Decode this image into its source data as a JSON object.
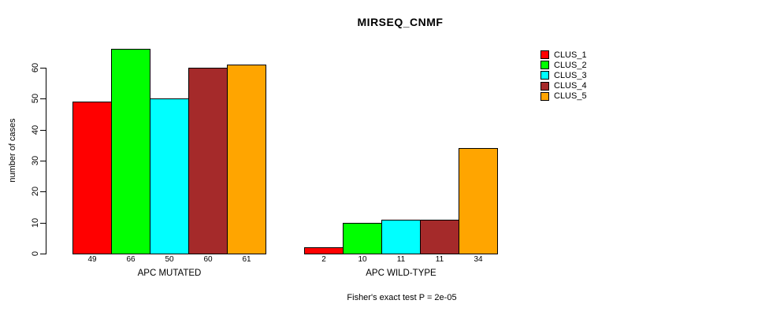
{
  "title": "MIRSEQ_CNMF",
  "footer": "Fisher's exact test P = 2e-05",
  "chart_data": {
    "type": "bar",
    "title": "MIRSEQ_CNMF",
    "xlabel": "",
    "ylabel": "number of cases",
    "ylim": [
      0,
      60
    ],
    "yticks": [
      0,
      10,
      20,
      30,
      40,
      50,
      60
    ],
    "grid": false,
    "legend_position": "right",
    "bar_outline_color": "#000000",
    "background_color": "#ffffff",
    "annotation": "Fisher's exact test P = 2e-05",
    "groups": [
      {
        "label": "APC MUTATED",
        "values": [
          49,
          66,
          50,
          60,
          61
        ]
      },
      {
        "label": "APC WILD-TYPE",
        "values": [
          2,
          10,
          11,
          11,
          34
        ]
      }
    ],
    "series": [
      {
        "name": "CLUS_1",
        "color": "#FF0000"
      },
      {
        "name": "CLUS_2",
        "color": "#00FF00"
      },
      {
        "name": "CLUS_3",
        "color": "#00FFFF"
      },
      {
        "name": "CLUS_4",
        "color": "#A52A2A"
      },
      {
        "name": "CLUS_5",
        "color": "#FFA500"
      }
    ]
  }
}
